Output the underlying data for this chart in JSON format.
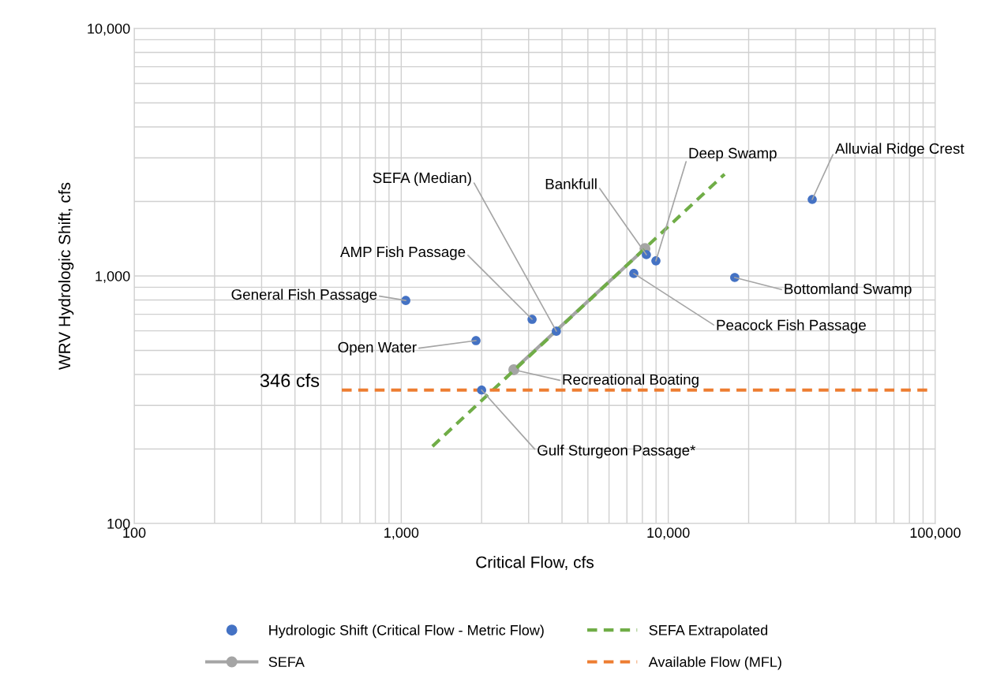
{
  "chart_data": {
    "type": "scatter",
    "xlabel": "Critical Flow, cfs",
    "ylabel": "WRV Hydrologic Shift, cfs",
    "log": "xy",
    "grid": true,
    "legend": "bottom",
    "xlim": [
      100,
      100000
    ],
    "ylim": [
      100,
      10000
    ],
    "xticks": [
      {
        "value": 100,
        "label": "100"
      },
      {
        "value": 1000,
        "label": "1,000"
      },
      {
        "value": 10000,
        "label": "10,000"
      },
      {
        "value": 100000,
        "label": "100,000"
      }
    ],
    "yticks": [
      {
        "value": 100,
        "label": "100"
      },
      {
        "value": 1000,
        "label": "1,000"
      },
      {
        "value": 10000,
        "label": "10,000"
      }
    ],
    "series": [
      {
        "name": "Hydrologic Shift (Critical Flow - Metric Flow)",
        "color": "#4472c4",
        "marker": "circle",
        "x": [
          1040,
          3090,
          3810,
          1905,
          2000,
          7430,
          8280,
          8990,
          17740,
          34600
        ],
        "values": [
          796,
          668,
          598,
          548,
          346,
          1023,
          1219,
          1151,
          986,
          2037
        ]
      },
      {
        "name": "SEFA",
        "type": "line",
        "color": "#a5a5a5",
        "marker": "circle",
        "line_style": "solid",
        "x": [
          2640,
          8180
        ],
        "values": [
          418,
          1291
        ]
      },
      {
        "name": "SEFA Extrapolated",
        "type": "line",
        "color": "#70ad47",
        "marker": "none",
        "line_style": "dashed",
        "x": [
          1309,
          16250
        ],
        "values": [
          205,
          2577
        ]
      },
      {
        "name": "Available Flow (MFL)",
        "type": "line",
        "color": "#ed7d31",
        "marker": "none",
        "line_style": "dashed",
        "x": [
          599,
          93600
        ],
        "values": [
          346,
          346
        ]
      }
    ],
    "annotations": [
      {
        "text": "General Fish Passage",
        "x": 1040,
        "y": 796
      },
      {
        "text": "AMP Fish Passage",
        "x": 3090,
        "y": 668
      },
      {
        "text": "SEFA (Median)",
        "x": 3810,
        "y": 598
      },
      {
        "text": "Open Water",
        "x": 1905,
        "y": 548
      },
      {
        "text": "Recreational Boating",
        "x": 2640,
        "y": 418
      },
      {
        "text": "Gulf Sturgeon Passage*",
        "x": 2000,
        "y": 346
      },
      {
        "text": "Peacock Fish Passage",
        "x": 7430,
        "y": 1023
      },
      {
        "text": "Bottomland Swamp",
        "x": 17740,
        "y": 986
      },
      {
        "text": "Bankfull",
        "x": 8280,
        "y": 1219
      },
      {
        "text": "Deep Swamp",
        "x": 8990,
        "y": 1151
      },
      {
        "text": "Alluvial Ridge Crest",
        "x": 34600,
        "y": 2037
      },
      {
        "text": "346 cfs",
        "x": 599,
        "y": 346
      }
    ]
  }
}
